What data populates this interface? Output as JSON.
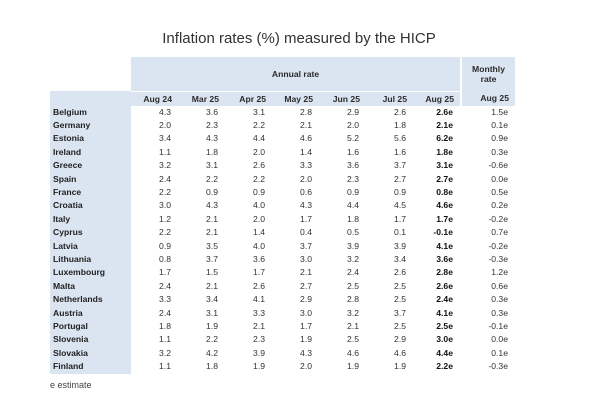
{
  "title": "Inflation rates (%) measured by the HICP",
  "header": {
    "annual_label": "Annual rate",
    "monthly_label_line1": "Monthly",
    "monthly_label_line2": "rate",
    "columns": [
      "Aug 24",
      "Mar 25",
      "Apr 25",
      "May 25",
      "Jun 25",
      "Jul 25",
      "Aug 25",
      "Aug 25"
    ]
  },
  "rows": [
    {
      "country": "Belgium",
      "values": [
        "4.3",
        "3.6",
        "3.1",
        "2.8",
        "2.9",
        "2.6",
        "2.6e",
        "1.5e"
      ]
    },
    {
      "country": "Germany",
      "values": [
        "2.0",
        "2.3",
        "2.2",
        "2.1",
        "2.0",
        "1.8",
        "2.1e",
        "0.1e"
      ]
    },
    {
      "country": "Estonia",
      "values": [
        "3.4",
        "4.3",
        "4.4",
        "4.6",
        "5.2",
        "5.6",
        "6.2e",
        "0.9e"
      ]
    },
    {
      "country": "Ireland",
      "values": [
        "1.1",
        "1.8",
        "2.0",
        "1.4",
        "1.6",
        "1.6",
        "1.8e",
        "0.3e"
      ]
    },
    {
      "country": "Greece",
      "values": [
        "3.2",
        "3.1",
        "2.6",
        "3.3",
        "3.6",
        "3.7",
        "3.1e",
        "-0.6e"
      ]
    },
    {
      "country": "Spain",
      "values": [
        "2.4",
        "2.2",
        "2.2",
        "2.0",
        "2.3",
        "2.7",
        "2.7e",
        "0.0e"
      ]
    },
    {
      "country": "France",
      "values": [
        "2.2",
        "0.9",
        "0.9",
        "0.6",
        "0.9",
        "0.9",
        "0.8e",
        "0.5e"
      ]
    },
    {
      "country": "Croatia",
      "values": [
        "3.0",
        "4.3",
        "4.0",
        "4.3",
        "4.4",
        "4.5",
        "4.6e",
        "0.2e"
      ]
    },
    {
      "country": "Italy",
      "values": [
        "1.2",
        "2.1",
        "2.0",
        "1.7",
        "1.8",
        "1.7",
        "1.7e",
        "-0.2e"
      ]
    },
    {
      "country": "Cyprus",
      "values": [
        "2.2",
        "2.1",
        "1.4",
        "0.4",
        "0.5",
        "0.1",
        "-0.1e",
        "0.7e"
      ]
    },
    {
      "country": "Latvia",
      "values": [
        "0.9",
        "3.5",
        "4.0",
        "3.7",
        "3.9",
        "3.9",
        "4.1e",
        "-0.2e"
      ]
    },
    {
      "country": "Lithuania",
      "values": [
        "0.8",
        "3.7",
        "3.6",
        "3.0",
        "3.2",
        "3.4",
        "3.6e",
        "-0.3e"
      ]
    },
    {
      "country": "Luxembourg",
      "values": [
        "1.7",
        "1.5",
        "1.7",
        "2.1",
        "2.4",
        "2.6",
        "2.8e",
        "1.2e"
      ]
    },
    {
      "country": "Malta",
      "values": [
        "2.4",
        "2.1",
        "2.6",
        "2.7",
        "2.5",
        "2.5",
        "2.6e",
        "0.6e"
      ]
    },
    {
      "country": "Netherlands",
      "values": [
        "3.3",
        "3.4",
        "4.1",
        "2.9",
        "2.8",
        "2.5",
        "2.4e",
        "0.3e"
      ]
    },
    {
      "country": "Austria",
      "values": [
        "2.4",
        "3.1",
        "3.3",
        "3.0",
        "3.2",
        "3.7",
        "4.1e",
        "0.3e"
      ]
    },
    {
      "country": "Portugal",
      "values": [
        "1.8",
        "1.9",
        "2.1",
        "1.7",
        "2.1",
        "2.5",
        "2.5e",
        "-0.1e"
      ]
    },
    {
      "country": "Slovenia",
      "values": [
        "1.1",
        "2.2",
        "2.3",
        "1.9",
        "2.5",
        "2.9",
        "3.0e",
        "0.0e"
      ]
    },
    {
      "country": "Slovakia",
      "values": [
        "3.2",
        "4.2",
        "3.9",
        "4.3",
        "4.6",
        "4.6",
        "4.4e",
        "0.1e"
      ]
    },
    {
      "country": "Finland",
      "values": [
        "1.1",
        "1.8",
        "1.9",
        "2.0",
        "1.9",
        "1.9",
        "2.2e",
        "-0.3e"
      ]
    }
  ],
  "footnote": "e estimate",
  "colors": {
    "header_bg": "#dbe4f1",
    "country_bg": "#dbe4f1"
  }
}
